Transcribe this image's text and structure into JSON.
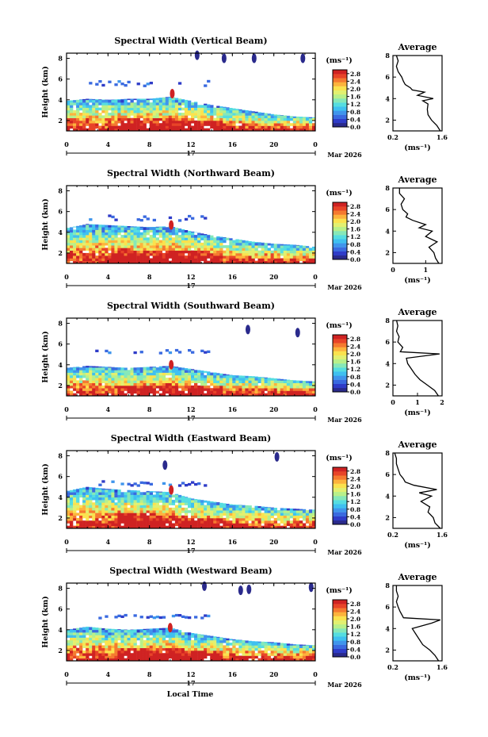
{
  "figure": {
    "x_label": "Local Time",
    "date_label": "17",
    "month_label": "Mar 2026",
    "y_label": "Height (km)",
    "unit_label": "(ms⁻¹)",
    "average_title": "Average",
    "average_xlabel": "(ms⁻¹)"
  },
  "colormap": [
    "#2a2a8c",
    "#2f3cc8",
    "#3a6ae0",
    "#3f95ec",
    "#3fc0f0",
    "#55dde0",
    "#86e8b8",
    "#b8f08a",
    "#e2f070",
    "#fbe24e",
    "#fdb33c",
    "#f57a30",
    "#e84428",
    "#cf2222"
  ],
  "chart_data": [
    {
      "type": "heatmap",
      "title": "Spectral Width (Vertical Beam)",
      "x_ticks": [
        "0",
        "4",
        "8",
        "12",
        "16",
        "20",
        "0"
      ],
      "y_ticks": [
        "2",
        "4",
        "6",
        "8"
      ],
      "xlim": [
        0,
        24
      ],
      "ylim": [
        1,
        8.5
      ],
      "colorbar_ticks": [
        "0.0",
        "0.4",
        "0.8",
        "1.2",
        "1.6",
        "2.0",
        "2.4",
        "2.8"
      ],
      "colorbar_range": [
        0,
        3
      ],
      "cloud_top_km": {
        "x": [
          0,
          2,
          4,
          6,
          8,
          10,
          12,
          14,
          16,
          18,
          20,
          22,
          24
        ],
        "y": [
          3.9,
          4.1,
          4.0,
          4.1,
          4.1,
          4.3,
          3.9,
          3.5,
          3.2,
          2.9,
          2.6,
          2.4,
          2.3
        ]
      },
      "top_layer_km": [
        5.2,
        5.7
      ],
      "spots": [
        {
          "x": 10.2,
          "y": 4.6,
          "v": 2.8
        },
        {
          "x": 12.6,
          "y": 8.3,
          "v": 0.1
        },
        {
          "x": 15.2,
          "y": 8.0,
          "v": 0.1
        },
        {
          "x": 18.1,
          "y": 8.0,
          "v": 0.2
        },
        {
          "x": 22.8,
          "y": 8.0,
          "v": 0.1
        }
      ],
      "average": {
        "xlim": [
          0.2,
          1.6
        ],
        "x_ticks": [
          "0.2",
          "1.6"
        ],
        "ylim": [
          1,
          8
        ],
        "y_ticks": [
          "2",
          "4",
          "6",
          "8"
        ],
        "height": [
          1.0,
          1.5,
          2.0,
          2.5,
          3.0,
          3.5,
          3.8,
          4.0,
          4.3,
          4.6,
          4.8,
          5.0,
          5.3,
          5.6,
          6.0,
          6.5,
          7.0,
          7.5,
          8.0
        ],
        "value": [
          1.55,
          1.45,
          1.3,
          1.2,
          1.18,
          1.2,
          1.05,
          1.35,
          0.9,
          1.1,
          0.75,
          0.7,
          0.55,
          0.5,
          0.45,
          0.35,
          0.3,
          0.35,
          0.3
        ]
      }
    },
    {
      "type": "heatmap",
      "title": "Spectral Width (Northward Beam)",
      "x_ticks": [
        "0",
        "4",
        "8",
        "12",
        "16",
        "20",
        "0"
      ],
      "y_ticks": [
        "2",
        "4",
        "6",
        "8"
      ],
      "xlim": [
        0,
        24
      ],
      "ylim": [
        1,
        8.5
      ],
      "colorbar_ticks": [
        "0.0",
        "0.4",
        "0.8",
        "1.2",
        "1.6",
        "2.0",
        "2.4",
        "2.8"
      ],
      "colorbar_range": [
        0,
        3
      ],
      "cloud_top_km": {
        "x": [
          0,
          2,
          4,
          6,
          8,
          10,
          12,
          14,
          16,
          18,
          20,
          22,
          24
        ],
        "y": [
          4.4,
          4.8,
          4.7,
          4.6,
          4.5,
          4.6,
          4.1,
          3.7,
          3.4,
          3.1,
          2.9,
          2.8,
          2.6
        ]
      },
      "top_layer_km": [
        5.0,
        5.5
      ],
      "spots": [
        {
          "x": 10.1,
          "y": 4.7,
          "v": 2.8
        }
      ],
      "average": {
        "xlim": [
          0,
          1.5
        ],
        "x_ticks": [
          "0",
          "1"
        ],
        "ylim": [
          1,
          8
        ],
        "y_ticks": [
          "2",
          "4",
          "6",
          "8"
        ],
        "height": [
          1.0,
          1.5,
          2.0,
          2.5,
          3.0,
          3.5,
          4.0,
          4.3,
          4.6,
          5.0,
          5.3,
          5.6,
          6.0,
          6.5,
          7.0,
          7.5,
          8.0
        ],
        "value": [
          1.4,
          1.3,
          1.25,
          1.1,
          1.35,
          1.0,
          1.2,
          0.8,
          1.0,
          0.6,
          0.4,
          0.45,
          0.3,
          0.25,
          0.35,
          0.2,
          0.2
        ]
      }
    },
    {
      "type": "heatmap",
      "title": "Spectral Width (Southward Beam)",
      "x_ticks": [
        "0",
        "4",
        "8",
        "12",
        "16",
        "20",
        "0"
      ],
      "y_ticks": [
        "2",
        "4",
        "6",
        "8"
      ],
      "xlim": [
        0,
        24
      ],
      "ylim": [
        1,
        8.5
      ],
      "colorbar_ticks": [
        "0.0",
        "0.4",
        "0.8",
        "1.2",
        "1.6",
        "2.0",
        "2.4",
        "2.8"
      ],
      "colorbar_range": [
        0,
        3
      ],
      "cloud_top_km": {
        "x": [
          0,
          2,
          4,
          6,
          8,
          10,
          12,
          14,
          16,
          18,
          20,
          22,
          24
        ],
        "y": [
          3.7,
          3.9,
          3.8,
          3.7,
          3.8,
          3.9,
          3.6,
          3.3,
          3.0,
          2.9,
          2.7,
          2.5,
          2.4
        ]
      },
      "top_layer_km": [
        5.0,
        5.3
      ],
      "spots": [
        {
          "x": 10.1,
          "y": 4.0,
          "v": 2.8
        },
        {
          "x": 17.5,
          "y": 7.4,
          "v": 0.2
        },
        {
          "x": 22.3,
          "y": 7.1,
          "v": 0.2
        }
      ],
      "average": {
        "xlim": [
          0,
          2
        ],
        "x_ticks": [
          "0",
          "1",
          "2"
        ],
        "ylim": [
          1,
          8
        ],
        "y_ticks": [
          "2",
          "4",
          "6",
          "8"
        ],
        "height": [
          1.0,
          1.5,
          2.0,
          2.5,
          3.0,
          3.5,
          4.0,
          4.5,
          4.9,
          5.1,
          5.5,
          6.0,
          6.5,
          7.0,
          7.5,
          8.0
        ],
        "value": [
          1.85,
          1.7,
          1.4,
          1.1,
          0.9,
          0.75,
          0.6,
          0.55,
          1.9,
          0.3,
          0.4,
          0.2,
          0.25,
          0.15,
          0.2,
          0.15
        ]
      }
    },
    {
      "type": "heatmap",
      "title": "Spectral Width (Eastward Beam)",
      "x_ticks": [
        "0",
        "4",
        "8",
        "12",
        "16",
        "20",
        "0"
      ],
      "y_ticks": [
        "2",
        "4",
        "6",
        "8"
      ],
      "xlim": [
        0,
        24
      ],
      "ylim": [
        1,
        8.5
      ],
      "colorbar_ticks": [
        "0.0",
        "0.4",
        "0.8",
        "1.2",
        "1.6",
        "2.0",
        "2.4",
        "2.8"
      ],
      "colorbar_range": [
        0,
        3
      ],
      "cloud_top_km": {
        "x": [
          0,
          2,
          4,
          6,
          8,
          10,
          12,
          14,
          16,
          18,
          20,
          22,
          24
        ],
        "y": [
          4.6,
          5.0,
          4.8,
          4.7,
          4.6,
          4.5,
          3.9,
          3.6,
          3.3,
          3.2,
          3.0,
          2.9,
          2.8
        ]
      },
      "top_layer_km": [
        5.0,
        5.4
      ],
      "spots": [
        {
          "x": 10.1,
          "y": 4.7,
          "v": 2.8
        },
        {
          "x": 9.5,
          "y": 7.1,
          "v": 0.2
        },
        {
          "x": 20.3,
          "y": 7.9,
          "v": 0.2
        }
      ],
      "average": {
        "xlim": [
          0.2,
          1.6
        ],
        "x_ticks": [
          "0.2",
          "1.6"
        ],
        "ylim": [
          1,
          8
        ],
        "y_ticks": [
          "2",
          "4",
          "6",
          "8"
        ],
        "height": [
          1.0,
          1.5,
          2.0,
          2.5,
          3.0,
          3.5,
          4.0,
          4.3,
          4.6,
          5.0,
          5.3,
          5.6,
          6.0,
          6.5,
          7.0,
          7.5,
          8.0
        ],
        "value": [
          1.55,
          1.4,
          1.35,
          1.2,
          1.25,
          1.0,
          1.3,
          0.95,
          1.45,
          0.8,
          0.55,
          0.5,
          0.4,
          0.35,
          0.3,
          0.3,
          0.25
        ]
      }
    },
    {
      "type": "heatmap",
      "title": "Spectral Width (Westward Beam)",
      "x_ticks": [
        "0",
        "4",
        "8",
        "12",
        "16",
        "20",
        "0"
      ],
      "y_ticks": [
        "2",
        "4",
        "6",
        "8"
      ],
      "xlim": [
        0,
        24
      ],
      "ylim": [
        1,
        8.5
      ],
      "colorbar_ticks": [
        "0.0",
        "0.4",
        "0.8",
        "1.2",
        "1.6",
        "2.0",
        "2.4",
        "2.8"
      ],
      "colorbar_range": [
        0,
        3
      ],
      "cloud_top_km": {
        "x": [
          0,
          2,
          4,
          6,
          8,
          10,
          12,
          14,
          16,
          18,
          20,
          22,
          24
        ],
        "y": [
          4.0,
          4.3,
          4.1,
          4.0,
          4.1,
          4.2,
          3.7,
          3.4,
          3.1,
          2.9,
          2.8,
          2.6,
          2.5
        ]
      },
      "top_layer_km": [
        5.0,
        5.3
      ],
      "spots": [
        {
          "x": 10.0,
          "y": 4.2,
          "v": 2.8
        },
        {
          "x": 13.3,
          "y": 8.2,
          "v": 0.1
        },
        {
          "x": 16.8,
          "y": 7.8,
          "v": 0.1
        },
        {
          "x": 17.6,
          "y": 7.9,
          "v": 0.05
        },
        {
          "x": 23.6,
          "y": 8.1,
          "v": 0.1
        }
      ],
      "average": {
        "xlim": [
          0.2,
          1.6
        ],
        "x_ticks": [
          "0.2",
          "1.6"
        ],
        "ylim": [
          1,
          8
        ],
        "y_ticks": [
          "2",
          "4",
          "6",
          "8"
        ],
        "height": [
          1.0,
          1.5,
          2.0,
          2.5,
          3.0,
          3.5,
          4.0,
          4.5,
          4.8,
          5.0,
          5.3,
          5.6,
          6.0,
          6.5,
          7.0,
          7.5,
          8.0
        ],
        "value": [
          1.5,
          1.4,
          1.25,
          1.05,
          0.95,
          0.85,
          0.75,
          1.3,
          1.55,
          0.5,
          0.45,
          0.4,
          0.35,
          0.3,
          0.35,
          0.3,
          0.3
        ]
      }
    }
  ]
}
